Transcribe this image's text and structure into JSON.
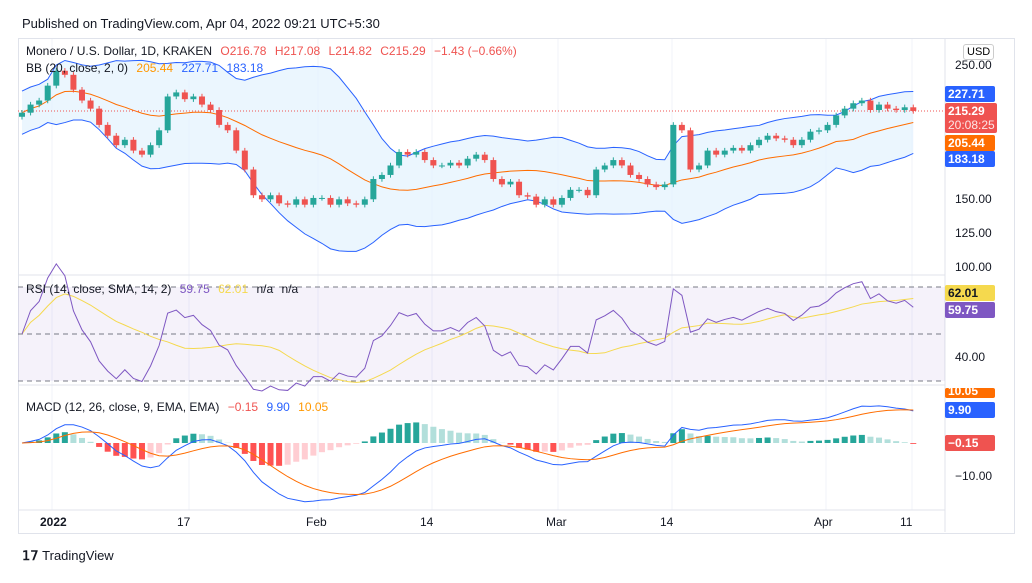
{
  "published": "Published on TradingView.com, Apr 04, 2022 09:21 UTC+5:30",
  "symbol": {
    "title": "Monero / U.S. Dollar, 1D, KRAKEN",
    "open": "O216.78",
    "high": "H217.08",
    "low": "L214.82",
    "close": "C215.29",
    "change": "−1.43 (−0.66%)"
  },
  "bb": {
    "label": "BB (20, close, 2, 0)",
    "basis": "205.44",
    "upper": "227.71",
    "lower": "183.18"
  },
  "rsi": {
    "label": "RSI (14, close, SMA, 14, 2)",
    "value": "59.75",
    "ma": "62.01",
    "na1": "n/a",
    "na2": "n/a",
    "axis": [
      "40.00"
    ]
  },
  "macd": {
    "label": "MACD (12, 26, close, 9, EMA, EMA)",
    "hist": "−0.15",
    "macd": "9.90",
    "signal": "10.05",
    "axis": [
      "−10.00"
    ]
  },
  "price_axis": {
    "currency": "USD",
    "ticks": [
      "250.00",
      "150.00",
      "125.00",
      "100.00"
    ],
    "last": "215.29",
    "countdown": "20:08:25"
  },
  "time_axis": [
    "2022",
    "17",
    "Feb",
    "14",
    "Mar",
    "14",
    "Apr",
    "11"
  ],
  "logo": "TradingView",
  "colors": {
    "up": "#26a69a",
    "down": "#ef5350",
    "bb_band": "#2962ff",
    "bb_basis": "#ff6d00",
    "rsi": "#7e57c2",
    "rsi_ma": "#f5d94e",
    "macd": "#2962ff",
    "signal": "#ff6d00"
  },
  "chart_data": {
    "type": "candlestick",
    "first_date": "2021-12-28",
    "closes": [
      214,
      220,
      223,
      234,
      245,
      242,
      231,
      223,
      217,
      205,
      197,
      190,
      194,
      186,
      183,
      190,
      201,
      226,
      229,
      224,
      226,
      220,
      216,
      205,
      201,
      186,
      172,
      153,
      150,
      153,
      147,
      146,
      150,
      146,
      151,
      151,
      146,
      150,
      147,
      146,
      150,
      165,
      168,
      175,
      185,
      183,
      185,
      179,
      175,
      175,
      177,
      175,
      180,
      183,
      179,
      165,
      161,
      163,
      153,
      152,
      146,
      150,
      146,
      151,
      157,
      157,
      153,
      172,
      175,
      179,
      175,
      168,
      165,
      161,
      159,
      161,
      205,
      201,
      172,
      175,
      186,
      183,
      186,
      188,
      186,
      190,
      194,
      197,
      195,
      194,
      190,
      194,
      200,
      201,
      205,
      212,
      217,
      221,
      223,
      216,
      220,
      217,
      216,
      218,
      215.29
    ]
  }
}
